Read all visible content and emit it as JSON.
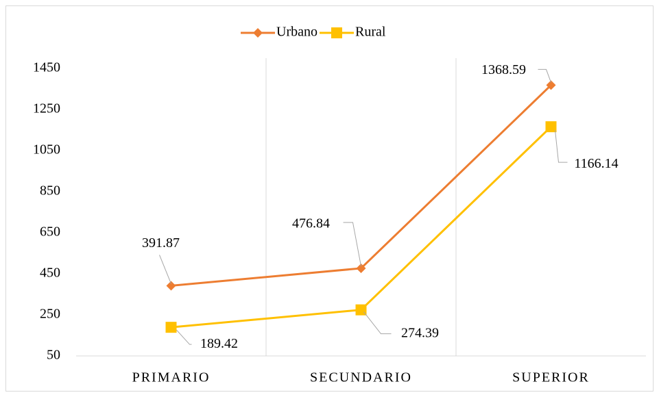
{
  "chart_data": {
    "type": "line",
    "categories": [
      "PRIMARIO",
      "SECUNDARIO",
      "SUPERIOR"
    ],
    "series": [
      {
        "name": "Urbano",
        "color": "#ed7d31",
        "marker": "diamond",
        "values": [
          391.87,
          476.84,
          1368.59
        ]
      },
      {
        "name": "Rural",
        "color": "#ffc000",
        "marker": "square",
        "values": [
          189.42,
          274.39,
          1166.14
        ]
      }
    ],
    "ylim": [
      50,
      1450
    ],
    "yticks": [
      50,
      250,
      450,
      650,
      850,
      1050,
      1250,
      1450
    ],
    "legend": "top",
    "grid": false
  }
}
